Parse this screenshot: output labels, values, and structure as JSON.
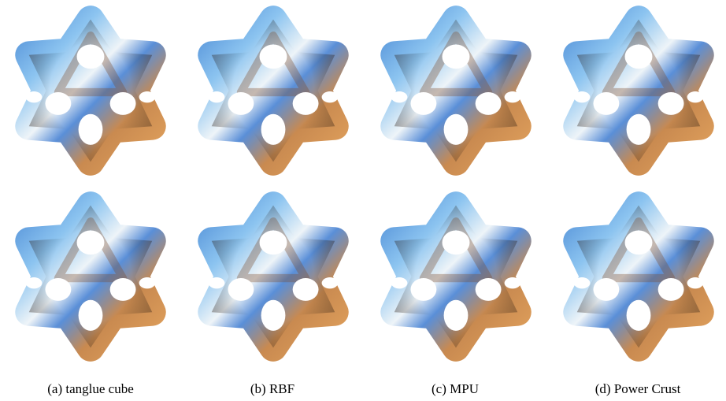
{
  "captions": [
    "(a) tanglue cube",
    "(b) RBF",
    "(c) MPU",
    "(d) Power Crust"
  ]
}
